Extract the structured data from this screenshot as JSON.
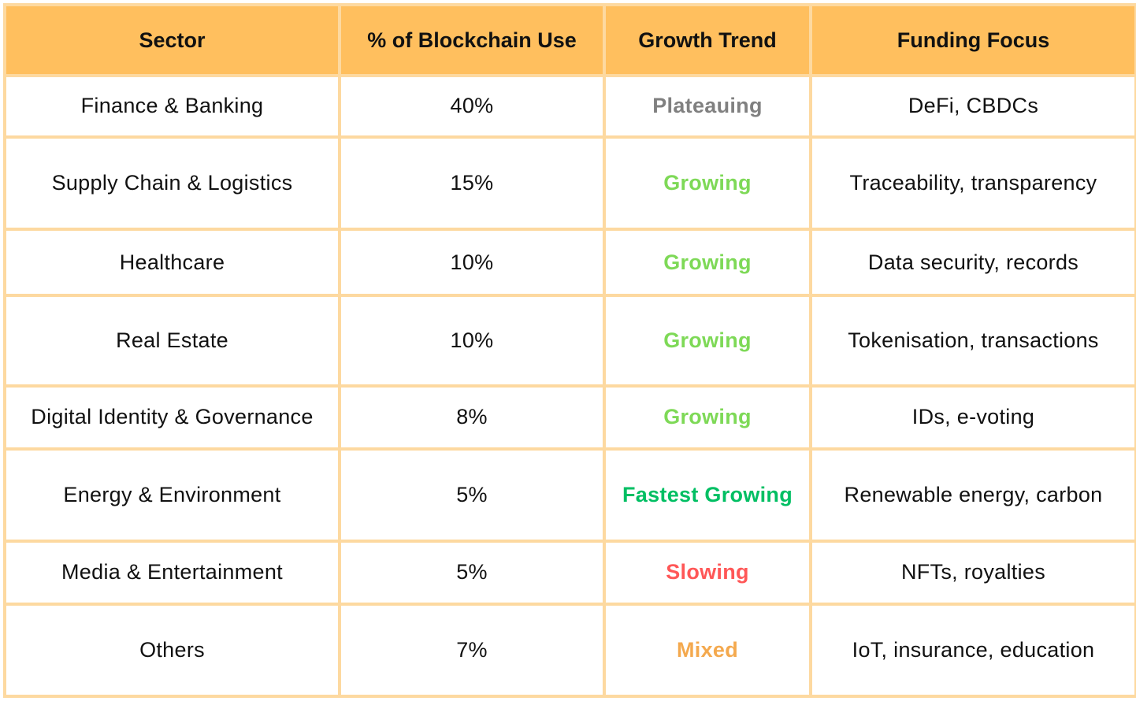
{
  "chart_data": {
    "type": "table",
    "columns": [
      "Sector",
      "% of Blockchain Use",
      "Growth Trend",
      "Funding Focus"
    ],
    "rows": [
      {
        "sector": "Finance & Banking",
        "share": "40%",
        "trend": "Plateauing",
        "focus": "DeFi, CBDCs"
      },
      {
        "sector": "Supply Chain & Logistics",
        "share": "15%",
        "trend": "Growing",
        "focus": "Traceability, transparency"
      },
      {
        "sector": "Healthcare",
        "share": "10%",
        "trend": "Growing",
        "focus": "Data security, records"
      },
      {
        "sector": "Real Estate",
        "share": "10%",
        "trend": "Growing",
        "focus": "Tokenisation, transactions"
      },
      {
        "sector": "Digital Identity & Governance",
        "share": "8%",
        "trend": "Growing",
        "focus": "IDs, e-voting"
      },
      {
        "sector": "Energy & Environment",
        "share": "5%",
        "trend": "Fastest Growing",
        "focus": "Renewable energy, carbon"
      },
      {
        "sector": "Media & Entertainment",
        "share": "5%",
        "trend": "Slowing",
        "focus": "NFTs, royalties"
      },
      {
        "sector": "Others",
        "share": "7%",
        "trend": "Mixed",
        "focus": "IoT, insurance, education"
      }
    ]
  },
  "colors": {
    "header_bg": "#ffbf5e",
    "border": "#fdd9a0",
    "Plateauing": "#808080",
    "Growing": "#7ed957",
    "Fastest Growing": "#00bf63",
    "Slowing": "#ff5757",
    "Mixed": "#f4a94e"
  }
}
